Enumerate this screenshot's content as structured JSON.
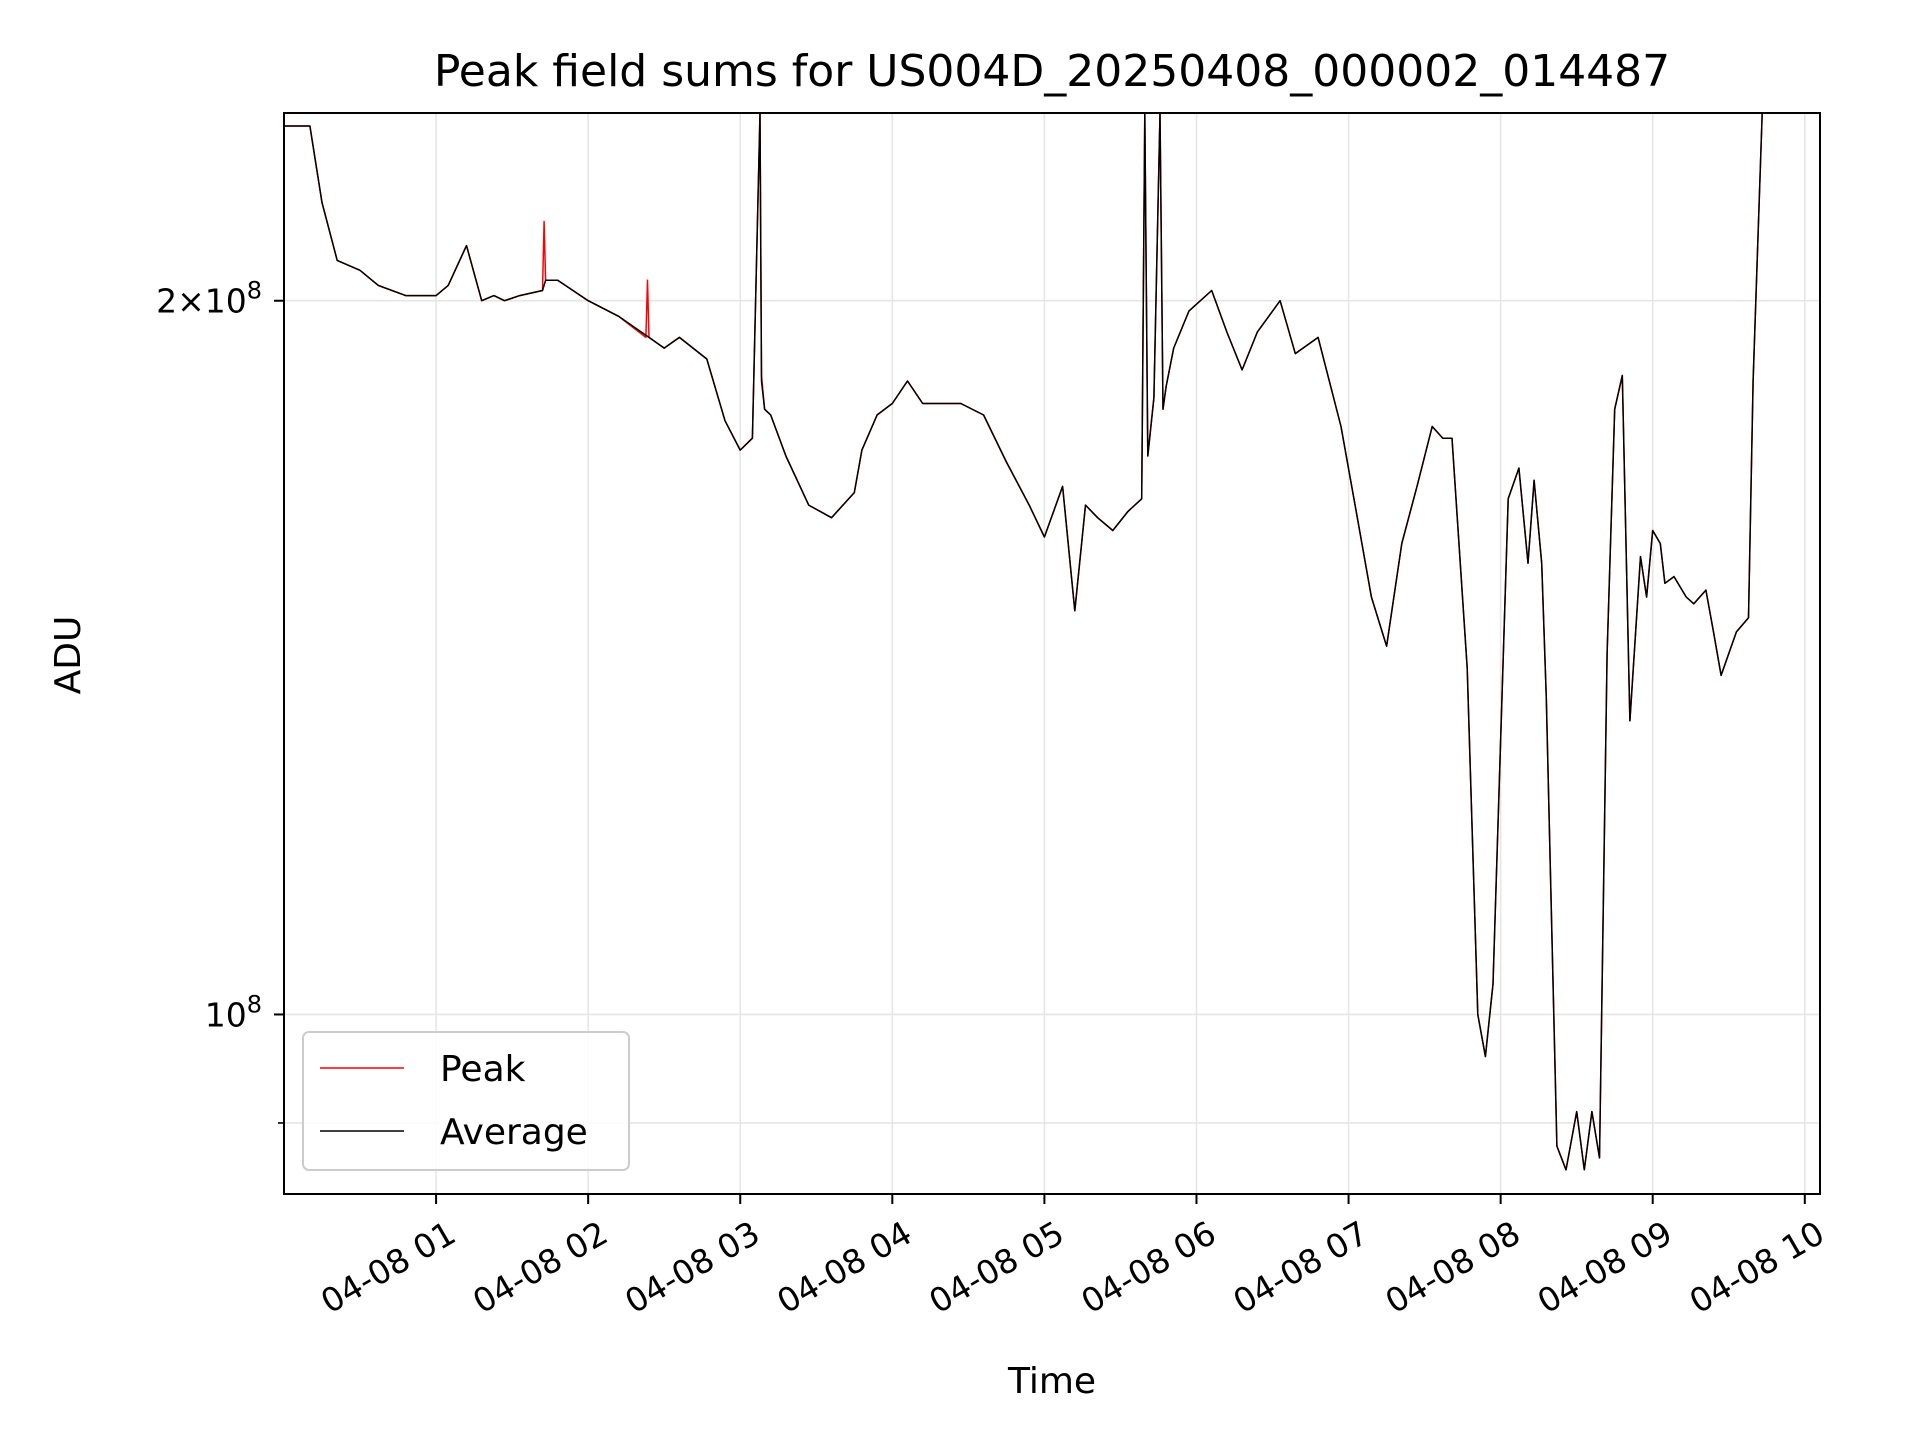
{
  "chart_data": {
    "type": "line",
    "title": "Peak field sums for US004D_20250408_000002_014487",
    "xlabel": "Time",
    "ylabel": "ADU",
    "yscale": "log",
    "ylim": [
      84000000,
      240000000
    ],
    "xlim_hours": [
      0.0,
      10.1
    ],
    "grid": true,
    "legend_position": "lower-left",
    "x_ticks": [
      {
        "hour": 1,
        "label": "04-08 01"
      },
      {
        "hour": 2,
        "label": "04-08 02"
      },
      {
        "hour": 3,
        "label": "04-08 03"
      },
      {
        "hour": 4,
        "label": "04-08 04"
      },
      {
        "hour": 5,
        "label": "04-08 05"
      },
      {
        "hour": 6,
        "label": "04-08 06"
      },
      {
        "hour": 7,
        "label": "04-08 07"
      },
      {
        "hour": 8,
        "label": "04-08 08"
      },
      {
        "hour": 9,
        "label": "04-08 09"
      },
      {
        "hour": 10,
        "label": "04-08 10"
      }
    ],
    "y_ticks": [
      {
        "value": 200000000,
        "base": "2×10",
        "exp": "8"
      },
      {
        "value": 100000000,
        "base": "10",
        "exp": "8"
      }
    ],
    "y_minor_ticks": [
      90000000
    ],
    "series": [
      {
        "name": "Peak",
        "color": "#ff0000",
        "x": [
          0.0,
          0.17,
          0.25,
          0.35,
          0.5,
          0.62,
          0.8,
          1.0,
          1.08,
          1.2,
          1.3,
          1.38,
          1.45,
          1.55,
          1.7,
          1.71,
          1.72,
          1.8,
          2.0,
          2.2,
          2.38,
          2.39,
          2.4,
          2.5,
          2.6,
          2.78,
          2.9,
          3.0,
          3.08,
          3.13,
          3.14,
          3.16,
          3.2,
          3.3,
          3.45,
          3.6,
          3.75,
          3.8,
          3.9,
          4.0,
          4.1,
          4.2,
          4.3,
          4.45,
          4.6,
          4.75,
          4.9,
          5.0,
          5.12,
          5.2,
          5.27,
          5.35,
          5.45,
          5.55,
          5.64,
          5.66,
          5.68,
          5.72,
          5.76,
          5.78,
          5.8,
          5.85,
          5.95,
          6.1,
          6.2,
          6.3,
          6.4,
          6.55,
          6.65,
          6.8,
          6.95,
          7.05,
          7.15,
          7.25,
          7.35,
          7.45,
          7.55,
          7.62,
          7.68,
          7.78,
          7.85,
          7.9,
          7.95,
          8.05,
          8.12,
          8.18,
          8.22,
          8.27,
          8.3,
          8.37,
          8.43,
          8.5,
          8.55,
          8.6,
          8.65,
          8.7,
          8.75,
          8.8,
          8.85,
          8.92,
          8.96,
          9.0,
          9.05,
          9.08,
          9.14,
          9.22,
          9.27,
          9.35,
          9.4,
          9.45,
          9.55,
          9.63,
          9.66,
          9.72,
          9.82,
          9.92,
          10.0
        ],
        "values": [
          237000000,
          237000000,
          220000000,
          208000000,
          206000000,
          203000000,
          201000000,
          201000000,
          203000000,
          211000000,
          200000000,
          201000000,
          200000000,
          201000000,
          202000000,
          216000000,
          204000000,
          204000000,
          200000000,
          197000000,
          193000000,
          204000000,
          193000000,
          191000000,
          193000000,
          189000000,
          178000000,
          173000000,
          175000000,
          240000000,
          186000000,
          180000000,
          179000000,
          172000000,
          164000000,
          162000000,
          166000000,
          173000000,
          179000000,
          181000000,
          185000000,
          181000000,
          181000000,
          181000000,
          179000000,
          171000000,
          164000000,
          159000000,
          167000000,
          148000000,
          164000000,
          162000000,
          160000000,
          163000000,
          165000000,
          240000000,
          172000000,
          182000000,
          240000000,
          180000000,
          184000000,
          191000000,
          198000000,
          202000000,
          194000000,
          187000000,
          194000000,
          200000000,
          190000000,
          193000000,
          177000000,
          163000000,
          150000000,
          143000000,
          158000000,
          167000000,
          177000000,
          175000000,
          175000000,
          140000000,
          100000000,
          96000000,
          103000000,
          165000000,
          170000000,
          155000000,
          168000000,
          155000000,
          136000000,
          88000000,
          86000000,
          91000000,
          86000000,
          91000000,
          87000000,
          142000000,
          180000000,
          186000000,
          133000000,
          156000000,
          150000000,
          160000000,
          158000000,
          152000000,
          153000000,
          150000000,
          149000000,
          151000000,
          145000000,
          139000000,
          145000000,
          147000000,
          185000000,
          240000000,
          240000000,
          240000000,
          240000000
        ]
      },
      {
        "name": "Average",
        "color": "#000000",
        "x": [
          0.0,
          0.17,
          0.25,
          0.35,
          0.5,
          0.62,
          0.8,
          1.0,
          1.08,
          1.2,
          1.3,
          1.38,
          1.45,
          1.55,
          1.7,
          1.72,
          1.8,
          2.0,
          2.2,
          2.4,
          2.5,
          2.6,
          2.78,
          2.9,
          3.0,
          3.08,
          3.13,
          3.14,
          3.16,
          3.2,
          3.3,
          3.45,
          3.6,
          3.75,
          3.8,
          3.9,
          4.0,
          4.1,
          4.2,
          4.3,
          4.45,
          4.6,
          4.75,
          4.9,
          5.0,
          5.12,
          5.2,
          5.27,
          5.35,
          5.45,
          5.55,
          5.64,
          5.66,
          5.68,
          5.72,
          5.76,
          5.78,
          5.8,
          5.85,
          5.95,
          6.1,
          6.2,
          6.3,
          6.4,
          6.55,
          6.65,
          6.8,
          6.95,
          7.05,
          7.15,
          7.25,
          7.35,
          7.45,
          7.55,
          7.62,
          7.68,
          7.78,
          7.85,
          7.9,
          7.95,
          8.05,
          8.12,
          8.18,
          8.22,
          8.27,
          8.3,
          8.37,
          8.43,
          8.5,
          8.55,
          8.6,
          8.65,
          8.7,
          8.75,
          8.8,
          8.85,
          8.92,
          8.96,
          9.0,
          9.05,
          9.08,
          9.14,
          9.22,
          9.27,
          9.35,
          9.4,
          9.45,
          9.55,
          9.63,
          9.66,
          9.72,
          9.82,
          9.92,
          10.0
        ],
        "values": [
          237000000,
          237000000,
          220000000,
          208000000,
          206000000,
          203000000,
          201000000,
          201000000,
          203000000,
          211000000,
          200000000,
          201000000,
          200000000,
          201000000,
          202000000,
          204000000,
          204000000,
          200000000,
          197000000,
          193000000,
          191000000,
          193000000,
          189000000,
          178000000,
          173000000,
          175000000,
          240000000,
          185000000,
          180000000,
          179000000,
          172000000,
          164000000,
          162000000,
          166000000,
          173000000,
          179000000,
          181000000,
          185000000,
          181000000,
          181000000,
          181000000,
          179000000,
          171000000,
          164000000,
          159000000,
          167000000,
          148000000,
          164000000,
          162000000,
          160000000,
          163000000,
          165000000,
          240000000,
          172000000,
          182000000,
          240000000,
          180000000,
          184000000,
          191000000,
          198000000,
          202000000,
          194000000,
          187000000,
          194000000,
          200000000,
          190000000,
          193000000,
          177000000,
          163000000,
          150000000,
          143000000,
          158000000,
          167000000,
          177000000,
          175000000,
          175000000,
          140000000,
          100000000,
          96000000,
          103000000,
          165000000,
          170000000,
          155000000,
          168000000,
          155000000,
          136000000,
          88000000,
          86000000,
          91000000,
          86000000,
          91000000,
          87000000,
          142000000,
          180000000,
          186000000,
          133000000,
          156000000,
          150000000,
          160000000,
          158000000,
          152000000,
          153000000,
          150000000,
          149000000,
          151000000,
          145000000,
          139000000,
          145000000,
          147000000,
          185000000,
          240000000,
          240000000,
          240000000,
          240000000
        ]
      }
    ]
  }
}
